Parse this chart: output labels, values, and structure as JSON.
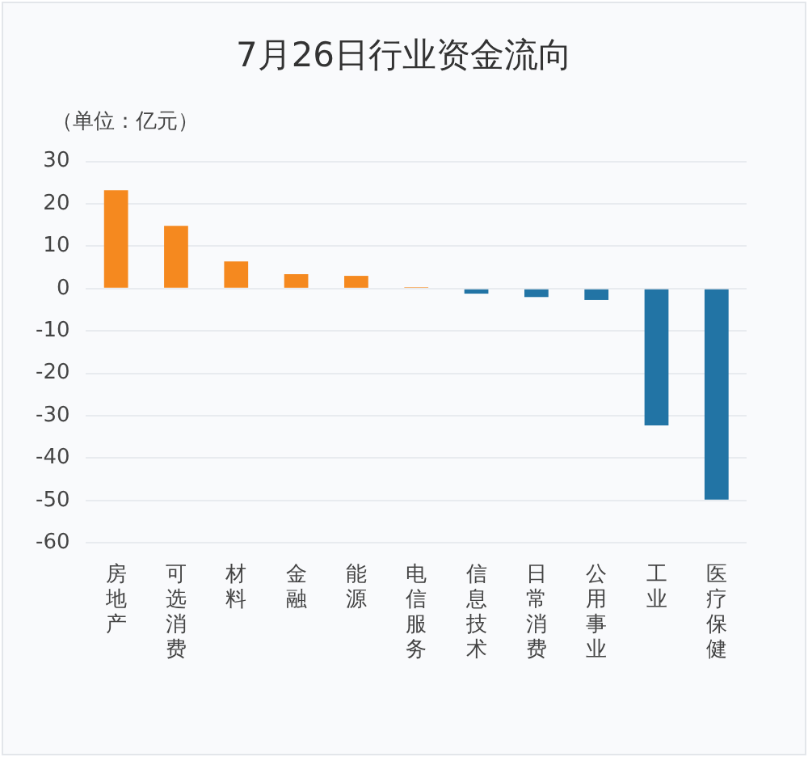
{
  "chart_data": {
    "type": "bar",
    "title": "7月26日行业资金流向",
    "ylabel": "（单位：亿元）",
    "categories": [
      "房地产",
      "可选消费",
      "材料",
      "金融",
      "能源",
      "电信服务",
      "信息技术",
      "日常消费",
      "公用事业",
      "工业",
      "医疗保健"
    ],
    "values": [
      23.2,
      14.8,
      6.4,
      3.4,
      3.0,
      0.3,
      -1.2,
      -2.0,
      -2.7,
      -32.3,
      -49.8
    ],
    "colors": [
      "#f5891f",
      "#f5891f",
      "#f5891f",
      "#f5891f",
      "#f5891f",
      "#f5891f",
      "#2274a5",
      "#2274a5",
      "#2274a5",
      "#2274a5",
      "#2274a5"
    ],
    "ylim": [
      -60,
      30
    ],
    "yticks": [
      -60,
      -50,
      -40,
      -30,
      -20,
      -10,
      0,
      10,
      20,
      30
    ],
    "grid": "y",
    "legend": false
  }
}
